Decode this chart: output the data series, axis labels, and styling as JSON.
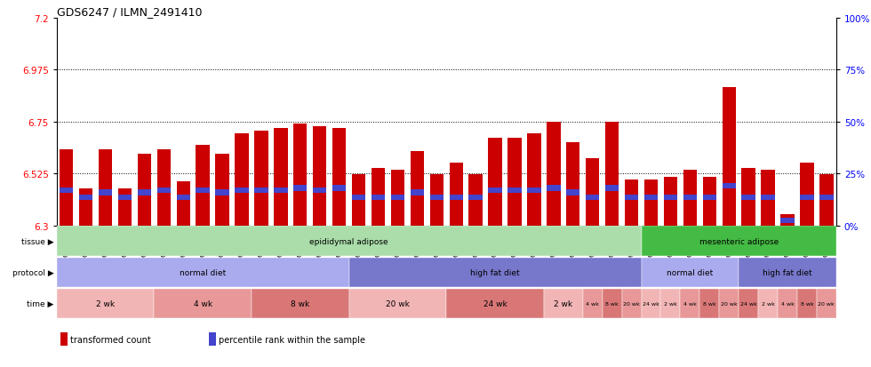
{
  "title": "GDS6247 / ILMN_2491410",
  "samples": [
    "GSM971546",
    "GSM971547",
    "GSM971548",
    "GSM971549",
    "GSM971550",
    "GSM971551",
    "GSM971552",
    "GSM971553",
    "GSM971554",
    "GSM971555",
    "GSM971556",
    "GSM971557",
    "GSM971558",
    "GSM971559",
    "GSM971560",
    "GSM971561",
    "GSM971562",
    "GSM971563",
    "GSM971564",
    "GSM971565",
    "GSM971566",
    "GSM971567",
    "GSM971568",
    "GSM971569",
    "GSM971570",
    "GSM971571",
    "GSM971572",
    "GSM971573",
    "GSM971574",
    "GSM971575",
    "GSM971576",
    "GSM971577",
    "GSM971578",
    "GSM971579",
    "GSM971580",
    "GSM971581",
    "GSM971582",
    "GSM971583",
    "GSM971584",
    "GSM971585"
  ],
  "red_values": [
    6.63,
    6.46,
    6.63,
    6.46,
    6.61,
    6.63,
    6.49,
    6.65,
    6.61,
    6.7,
    6.71,
    6.72,
    6.74,
    6.73,
    6.72,
    6.52,
    6.55,
    6.54,
    6.62,
    6.52,
    6.57,
    6.52,
    6.68,
    6.68,
    6.7,
    6.75,
    6.66,
    6.59,
    6.75,
    6.5,
    6.5,
    6.51,
    6.54,
    6.51,
    6.9,
    6.55,
    6.54,
    6.35,
    6.57,
    6.52
  ],
  "blue_positions": [
    6.44,
    6.41,
    6.43,
    6.41,
    6.43,
    6.44,
    6.41,
    6.44,
    6.43,
    6.44,
    6.44,
    6.44,
    6.45,
    6.44,
    6.45,
    6.41,
    6.41,
    6.41,
    6.43,
    6.41,
    6.41,
    6.41,
    6.44,
    6.44,
    6.44,
    6.45,
    6.43,
    6.41,
    6.45,
    6.41,
    6.41,
    6.41,
    6.41,
    6.41,
    6.46,
    6.41,
    6.41,
    6.31,
    6.41,
    6.41
  ],
  "y_min": 6.3,
  "y_max": 7.2,
  "y_ticks_left": [
    6.3,
    6.525,
    6.75,
    6.975,
    7.2
  ],
  "y_ticks_right": [
    0,
    25,
    50,
    75,
    100
  ],
  "dotted_lines": [
    6.525,
    6.75,
    6.975
  ],
  "bar_color": "#cc0000",
  "blue_color": "#4444cc",
  "tissue_groups": [
    {
      "label": "epididymal adipose",
      "start": 0,
      "end": 30,
      "color": "#aaddaa"
    },
    {
      "label": "mesenteric adipose",
      "start": 30,
      "end": 40,
      "color": "#44bb44"
    }
  ],
  "protocol_groups": [
    {
      "label": "normal diet",
      "start": 0,
      "end": 15,
      "color": "#aaaaee"
    },
    {
      "label": "high fat diet",
      "start": 15,
      "end": 30,
      "color": "#7777cc"
    },
    {
      "label": "normal diet",
      "start": 30,
      "end": 35,
      "color": "#aaaaee"
    },
    {
      "label": "high fat diet",
      "start": 35,
      "end": 40,
      "color": "#7777cc"
    }
  ],
  "time_groups": [
    {
      "label": "2 wk",
      "start": 0,
      "end": 5,
      "color": "#f2b5b5"
    },
    {
      "label": "4 wk",
      "start": 5,
      "end": 10,
      "color": "#e89898"
    },
    {
      "label": "8 wk",
      "start": 10,
      "end": 15,
      "color": "#d97777"
    },
    {
      "label": "20 wk",
      "start": 15,
      "end": 20,
      "color": "#f2b5b5"
    },
    {
      "label": "24 wk",
      "start": 20,
      "end": 25,
      "color": "#d97777"
    },
    {
      "label": "2 wk",
      "start": 25,
      "end": 27,
      "color": "#f2b5b5"
    },
    {
      "label": "4 wk",
      "start": 27,
      "end": 28,
      "color": "#e89898"
    },
    {
      "label": "8 wk",
      "start": 28,
      "end": 29,
      "color": "#d97777"
    },
    {
      "label": "20 wk",
      "start": 29,
      "end": 30,
      "color": "#e89898"
    },
    {
      "label": "24 wk",
      "start": 30,
      "end": 31,
      "color": "#f2b5b5"
    },
    {
      "label": "2 wk",
      "start": 31,
      "end": 32,
      "color": "#f2b5b5"
    },
    {
      "label": "4 wk",
      "start": 32,
      "end": 33,
      "color": "#e89898"
    },
    {
      "label": "8 wk",
      "start": 33,
      "end": 34,
      "color": "#d97777"
    },
    {
      "label": "20 wk",
      "start": 34,
      "end": 35,
      "color": "#e89898"
    },
    {
      "label": "24 wk",
      "start": 35,
      "end": 36,
      "color": "#d97777"
    },
    {
      "label": "2 wk",
      "start": 36,
      "end": 37,
      "color": "#f2b5b5"
    },
    {
      "label": "4 wk",
      "start": 37,
      "end": 38,
      "color": "#e89898"
    },
    {
      "label": "8 wk",
      "start": 38,
      "end": 39,
      "color": "#d97777"
    },
    {
      "label": "20 wk",
      "start": 39,
      "end": 40,
      "color": "#e89898"
    }
  ],
  "legend_items": [
    {
      "label": "transformed count",
      "color": "#cc0000"
    },
    {
      "label": "percentile rank within the sample",
      "color": "#4444cc"
    }
  ],
  "bg_color": "#ffffff",
  "plot_bg": "#ffffff"
}
